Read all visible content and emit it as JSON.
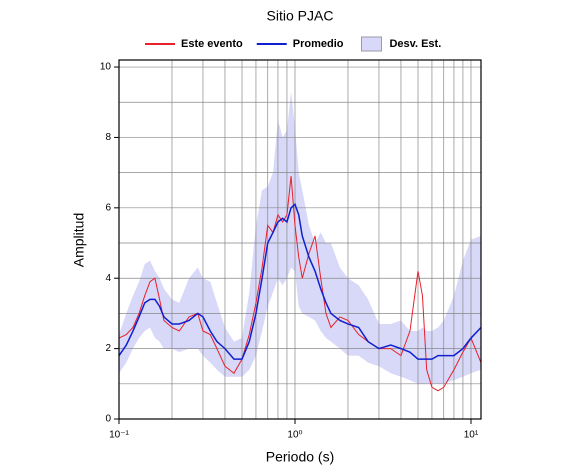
{
  "chart_data": {
    "type": "line",
    "title": "Sitio PJAC",
    "x_label": "Periodo (s)",
    "y_label": "Amplitud",
    "x": [
      0.1,
      0.11,
      0.12,
      0.13,
      0.14,
      0.15,
      0.16,
      0.17,
      0.18,
      0.2,
      0.22,
      0.25,
      0.28,
      0.3,
      0.33,
      0.36,
      0.4,
      0.45,
      0.5,
      0.55,
      0.6,
      0.65,
      0.7,
      0.75,
      0.8,
      0.85,
      0.9,
      0.95,
      1.0,
      1.05,
      1.1,
      1.2,
      1.3,
      1.4,
      1.5,
      1.6,
      1.8,
      2.0,
      2.3,
      2.6,
      3.0,
      3.5,
      4.0,
      4.5,
      5.0,
      5.3,
      5.6,
      6.0,
      6.5,
      7,
      8,
      9,
      10,
      11.4
    ],
    "series": [
      {
        "name": "Este evento",
        "color": "#e8202a",
        "values": [
          2.3,
          2.4,
          2.6,
          3.0,
          3.5,
          3.9,
          4.0,
          3.4,
          2.8,
          2.6,
          2.5,
          2.9,
          3.0,
          2.5,
          2.4,
          2.0,
          1.5,
          1.3,
          1.7,
          2.4,
          3.3,
          4.3,
          5.5,
          5.3,
          5.8,
          5.6,
          5.8,
          6.9,
          5.5,
          4.6,
          4.0,
          4.7,
          5.2,
          4.0,
          3.0,
          2.6,
          2.9,
          2.8,
          2.4,
          2.2,
          2.0,
          2.0,
          1.8,
          2.5,
          4.2,
          3.5,
          1.4,
          0.9,
          0.8,
          0.9,
          1.4,
          1.9,
          2.3,
          1.6
        ]
      },
      {
        "name": "Promedio",
        "color": "#1020d0",
        "values": [
          1.8,
          2.1,
          2.5,
          2.9,
          3.3,
          3.4,
          3.4,
          3.2,
          2.9,
          2.7,
          2.7,
          2.8,
          3.0,
          2.9,
          2.5,
          2.2,
          2.0,
          1.7,
          1.7,
          2.2,
          3.0,
          4.0,
          5.0,
          5.3,
          5.6,
          5.7,
          5.6,
          6.0,
          6.1,
          5.8,
          5.2,
          4.6,
          4.2,
          3.7,
          3.3,
          3.0,
          2.8,
          2.7,
          2.6,
          2.2,
          2.0,
          2.1,
          2.0,
          1.9,
          1.7,
          1.7,
          1.7,
          1.7,
          1.8,
          1.8,
          1.8,
          2.0,
          2.3,
          2.6
        ]
      }
    ],
    "band": {
      "name": "Desv. Est.",
      "color": "#d8d8f8",
      "upper": [
        2.4,
        3.0,
        3.5,
        3.9,
        4.4,
        4.5,
        4.2,
        4.0,
        3.7,
        3.4,
        3.3,
        4.0,
        4.3,
        4.0,
        3.9,
        3.3,
        2.6,
        2.2,
        2.3,
        3.6,
        5.5,
        6.5,
        6.6,
        7.0,
        8.5,
        8.0,
        8.2,
        9.3,
        8.3,
        7.0,
        6.5,
        5.5,
        5.0,
        5.3,
        5.0,
        5.0,
        4.3,
        4.0,
        3.8,
        3.4,
        2.7,
        2.7,
        2.8,
        2.5,
        2.5,
        2.6,
        2.5,
        2.5,
        2.6,
        2.8,
        3.5,
        4.5,
        5.1,
        5.2
      ],
      "lower": [
        1.3,
        1.6,
        2.0,
        2.3,
        2.5,
        2.6,
        2.3,
        2.2,
        2.0,
        2.0,
        1.9,
        2.0,
        2.0,
        1.8,
        1.6,
        1.4,
        1.2,
        1.2,
        1.2,
        1.4,
        1.8,
        2.5,
        3.2,
        3.6,
        4.0,
        3.8,
        4.0,
        4.3,
        4.2,
        3.2,
        3.0,
        2.9,
        2.8,
        2.5,
        2.3,
        2.2,
        2.0,
        1.8,
        1.8,
        1.6,
        1.5,
        1.3,
        1.2,
        1.1,
        1.0,
        1.0,
        1.0,
        1.0,
        1.0,
        1.0,
        1.1,
        1.2,
        1.3,
        1.4
      ]
    },
    "x_scale": "log",
    "xlim": [
      0.1,
      11.4
    ],
    "ylim": [
      0,
      10.2
    ],
    "xticks": [
      {
        "value": 0.1,
        "label": "10⁻¹"
      },
      {
        "value": 1,
        "label": "10⁰"
      },
      {
        "value": 10,
        "label": "10¹"
      }
    ],
    "yticks": [
      0,
      2,
      4,
      6,
      8,
      10
    ],
    "xminor": [
      0.2,
      0.3,
      0.4,
      0.5,
      0.6,
      0.7,
      0.8,
      0.9,
      2,
      3,
      4,
      5,
      6,
      7,
      8,
      9
    ],
    "yminor": [
      1,
      3,
      5,
      7,
      9
    ],
    "grid": true
  }
}
